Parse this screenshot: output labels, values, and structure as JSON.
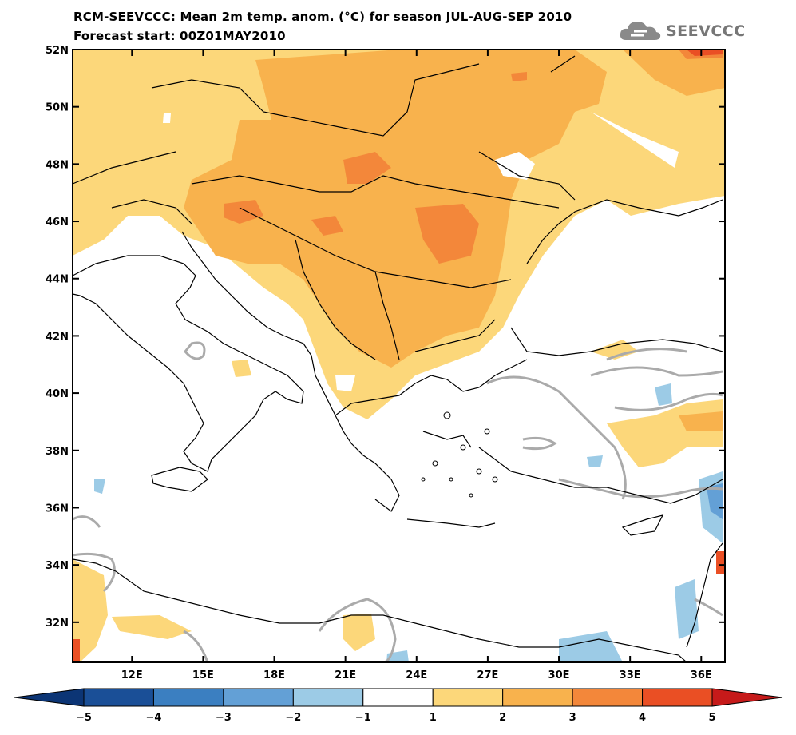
{
  "title": {
    "line1": "RCM-SEEVCCC: Mean 2m temp. anom. (°C) for season JUL-AUG-SEP 2010",
    "line2": "Forecast start: 00Z01MAY2010"
  },
  "logo": {
    "text": "SEEVCCC",
    "icon": "cloud-icon"
  },
  "map": {
    "lat_labels": [
      "52N",
      "50N",
      "48N",
      "46N",
      "44N",
      "42N",
      "40N",
      "38N",
      "36N",
      "34N",
      "32N"
    ],
    "lon_labels": [
      "12E",
      "15E",
      "18E",
      "21E",
      "24E",
      "27E",
      "30E",
      "33E",
      "36E"
    ],
    "lat_range": [
      30.6,
      52
    ],
    "lon_range": [
      9.5,
      37
    ]
  },
  "colorbar": {
    "labels": [
      "−5",
      "−4",
      "−3",
      "−2",
      "−1",
      "1",
      "2",
      "3",
      "4",
      "5"
    ],
    "colors": [
      "#1a4f97",
      "#3b7fc1",
      "#63a0d6",
      "#9ccbe6",
      "#ffffff",
      "#fcd77a",
      "#f8b24d",
      "#f3873a",
      "#ea4f24"
    ],
    "low_arrow_color": "#0c3575",
    "high_arrow_color": "#c61a1a"
  }
}
